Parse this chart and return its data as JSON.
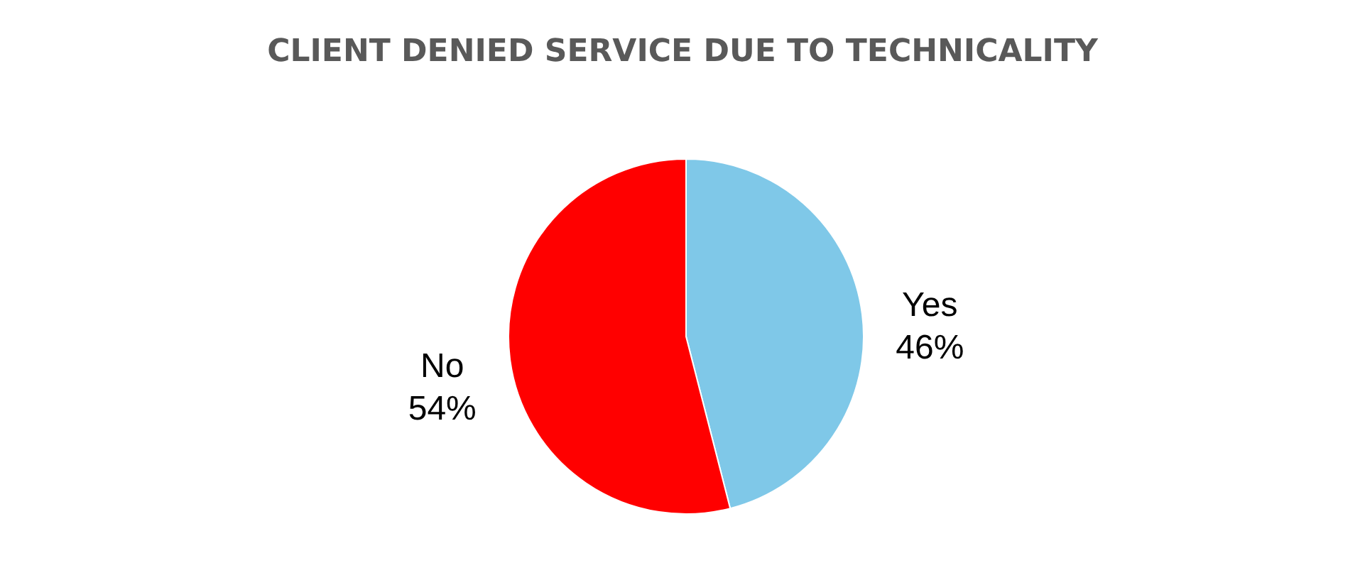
{
  "chart_data": {
    "type": "pie",
    "title": "CLIENT DENIED SERVICE DUE TO TECHNICALITY",
    "categories": [
      "Yes",
      "No"
    ],
    "values": [
      46,
      54
    ],
    "colors": [
      "#7fc8e8",
      "#ff0000"
    ],
    "value_labels": [
      "46%",
      "54%"
    ]
  }
}
